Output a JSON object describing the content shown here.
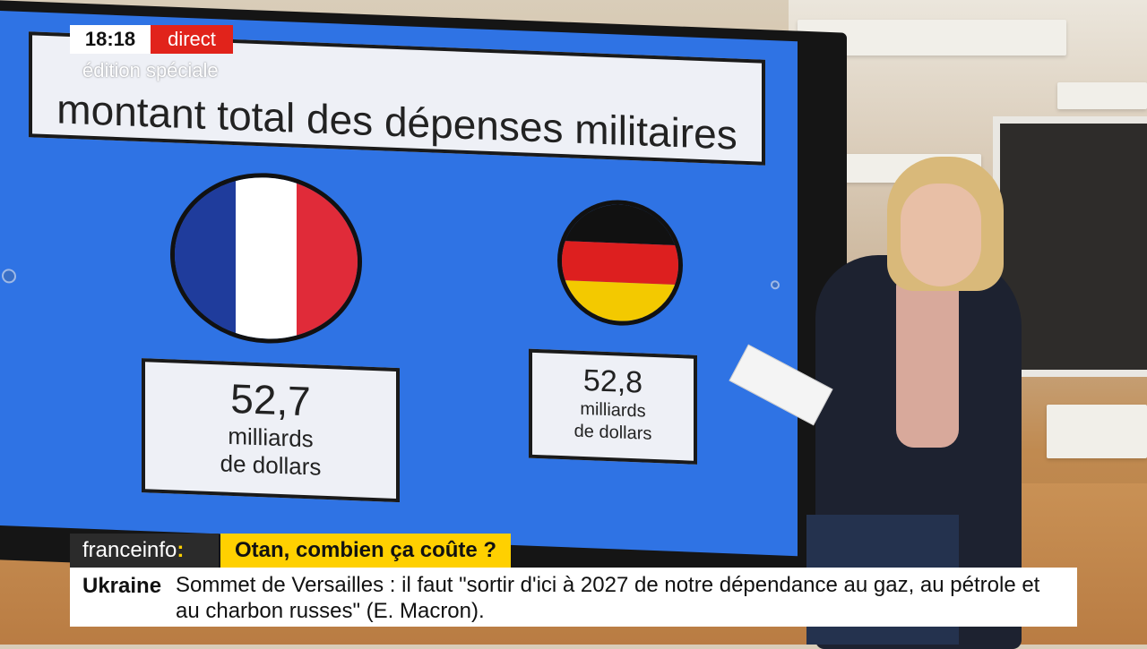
{
  "overlay": {
    "time": "18:18",
    "live_label": "direct",
    "edition": "édition spéciale"
  },
  "screen": {
    "title": "montant total des dépenses militaires",
    "france": {
      "value": "52,7",
      "unit_line1": "milliards",
      "unit_line2": "de dollars"
    },
    "germany": {
      "value": "52,8",
      "unit_line1": "milliards",
      "unit_line2": "de dollars"
    }
  },
  "lower_third": {
    "brand": "franceinfo",
    "brand_colon": ":",
    "headline": "Otan, combien ça coûte ?",
    "ticker_tag": "Ukraine",
    "ticker_text": "Sommet de Versailles : il faut \"sortir d'ici à 2027 de notre dépendance au gaz, au pétrole et au charbon russes\" (E. Macron)."
  },
  "colors": {
    "screen_blue": "#2f73e4",
    "live_red": "#e1231b",
    "headline_yellow": "#ffd000",
    "france_blue": "#1f3c9c",
    "france_white": "#ffffff",
    "france_red": "#e02b39",
    "germany_black": "#111111",
    "germany_red": "#dd1f1f",
    "germany_gold": "#f3c900"
  },
  "icons": [
    "flag-france-icon",
    "flag-germany-icon"
  ]
}
